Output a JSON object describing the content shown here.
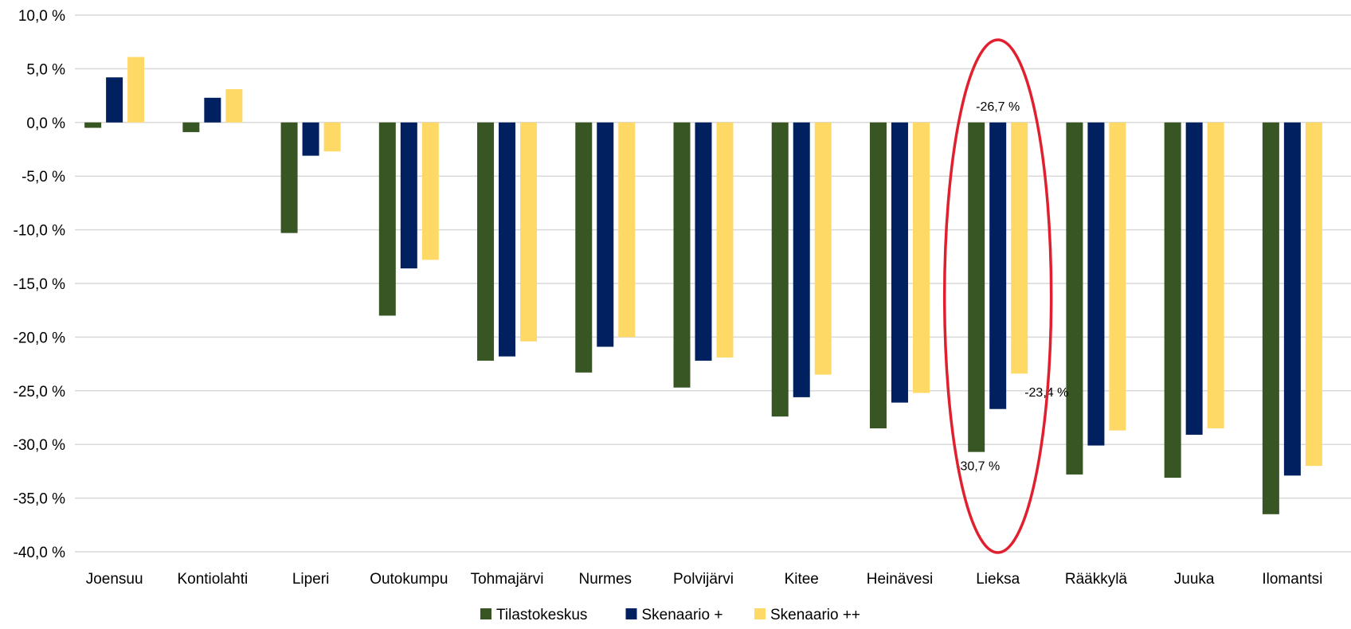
{
  "chart_data": {
    "type": "bar",
    "title": "",
    "xlabel": "",
    "ylabel": "",
    "ylim": [
      -40,
      10
    ],
    "ytick_step": 5,
    "grid": true,
    "legend_position": "bottom",
    "categories": [
      "Joensuu",
      "Kontiolahti",
      "Liperi",
      "Outokumpu",
      "Tohmajärvi",
      "Nurmes",
      "Polvijärvi",
      "Kitee",
      "Heinävesi",
      "Lieksa",
      "Rääkkylä",
      "Juuka",
      "Ilomantsi"
    ],
    "yticks": [
      "10,0 %",
      "5,0 %",
      "0,0 %",
      "-5,0 %",
      "-10,0 %",
      "-15,0 %",
      "-20,0 %",
      "-25,0 %",
      "-30,0 %",
      "-35,0 %",
      "-40,0 %"
    ],
    "series": [
      {
        "name": "Tilastokeskus",
        "color": "#375623",
        "values": [
          -0.5,
          -0.9,
          -10.3,
          -18.0,
          -22.2,
          -23.3,
          -24.7,
          -27.4,
          -28.5,
          -30.7,
          -32.8,
          -33.1,
          -36.5
        ]
      },
      {
        "name": "Skenaario +",
        "color": "#002060",
        "values": [
          4.2,
          2.3,
          -3.1,
          -13.6,
          -21.8,
          -20.9,
          -22.2,
          -25.6,
          -26.1,
          -26.7,
          -30.1,
          -29.1,
          -32.9
        ]
      },
      {
        "name": "Skenaario ++",
        "color": "#FFD966",
        "values": [
          6.1,
          3.1,
          -2.7,
          -12.8,
          -20.4,
          -20.0,
          -21.9,
          -23.5,
          -25.2,
          -23.4,
          -28.7,
          -28.5,
          -32.0
        ]
      }
    ],
    "data_labels": [
      {
        "category": "Lieksa",
        "series": "Tilastokeskus",
        "text": "-30,7 %"
      },
      {
        "category": "Lieksa",
        "series": "Skenaario +",
        "text": "-26,7 %"
      },
      {
        "category": "Lieksa",
        "series": "Skenaario ++",
        "text": "-23,4 %"
      }
    ],
    "annotation": {
      "type": "ellipse",
      "category": "Lieksa",
      "color": "#E0202F"
    },
    "gridline_color": "#D9D9D9",
    "zero_line_color": "#D9D9D9"
  }
}
